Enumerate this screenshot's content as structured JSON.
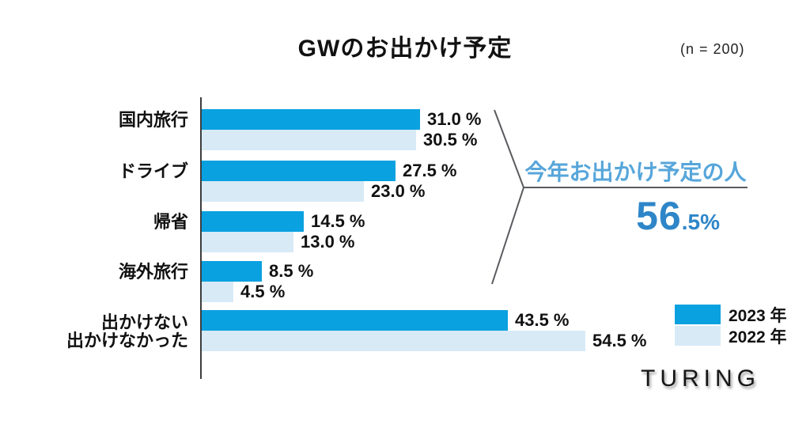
{
  "header": {
    "title": "GWのお出かけ予定",
    "sample_size": "(n = 200)"
  },
  "chart_data": {
    "type": "bar",
    "orientation": "horizontal",
    "unit": "%",
    "title": "GWのお出かけ予定",
    "sample_note": "(n = 200)",
    "categories": [
      "国内旅行",
      "ドライブ",
      "帰省",
      "海外旅行",
      "出かけない\n出かけなかった"
    ],
    "series": [
      {
        "name": "2023 年",
        "color": "#0aa1e0",
        "values": [
          31.0,
          27.5,
          14.5,
          8.5,
          43.5
        ],
        "labels": [
          "31.0 %",
          "27.5 %",
          "14.5 %",
          "8.5 %",
          "43.5 %"
        ]
      },
      {
        "name": "2022 年",
        "color": "#d7eaf6",
        "values": [
          30.5,
          23.0,
          13.0,
          4.5,
          54.5
        ],
        "labels": [
          "30.5 %",
          "23.0 %",
          "13.0 %",
          "4.5 %",
          "54.5 %"
        ]
      }
    ],
    "xlim": [
      0,
      60
    ],
    "grid": false,
    "legend_position": "bottom-right"
  },
  "callout": {
    "label": "今年お出かけ予定の人",
    "value_main": "56",
    "value_sub": ".5%",
    "label_color": "#57a6da",
    "value_color": "#2e86c8",
    "line_color": "#595b5e"
  },
  "legend": {
    "items": [
      {
        "label": "2023 年",
        "color": "#0aa1e0"
      },
      {
        "label": "2022 年",
        "color": "#d7eaf6"
      }
    ]
  },
  "logo": {
    "text": "TURING"
  }
}
